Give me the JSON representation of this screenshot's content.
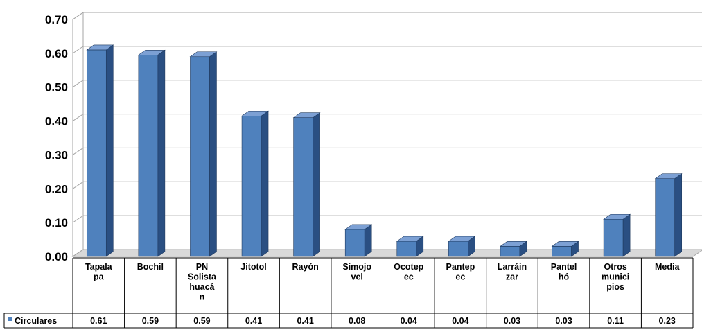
{
  "chart_data": {
    "type": "bar",
    "style": "3d-clustered-column",
    "categories": [
      [
        "Tapala",
        "pa"
      ],
      [
        "Bochil"
      ],
      [
        "PN",
        "Solista",
        "huacá",
        "n"
      ],
      [
        "Jitotol"
      ],
      [
        "Rayón"
      ],
      [
        "Simojo",
        "vel"
      ],
      [
        "Ocotep",
        "ec"
      ],
      [
        "Pantep",
        "ec"
      ],
      [
        "Larráin",
        "zar"
      ],
      [
        "Pantel",
        "hó"
      ],
      [
        "Otros",
        "munici",
        "pios"
      ],
      [
        "Media"
      ]
    ],
    "series": [
      {
        "name": "Circulares",
        "values": [
          0.61,
          0.595,
          0.59,
          0.415,
          0.41,
          0.08,
          0.045,
          0.045,
          0.03,
          0.03,
          0.11,
          0.23
        ],
        "labels": [
          "0.61",
          "0.59",
          "0.59",
          "0.41",
          "0.41",
          "0.08",
          "0.04",
          "0.04",
          "0.03",
          "0.03",
          "0.11",
          "0.23"
        ],
        "color": "#4f81bd"
      }
    ],
    "ylim": [
      0,
      0.7
    ],
    "yticks": [
      "0.00",
      "0.10",
      "0.20",
      "0.30",
      "0.40",
      "0.50",
      "0.60",
      "0.70"
    ],
    "grid": true,
    "legend": "data-table",
    "colors": {
      "bar_front": "#4f81bd",
      "bar_side": "#2a4f82",
      "bar_top": "#7ca0d4",
      "grid": "#a6a6a6",
      "floor": "#d9d9d9"
    }
  }
}
